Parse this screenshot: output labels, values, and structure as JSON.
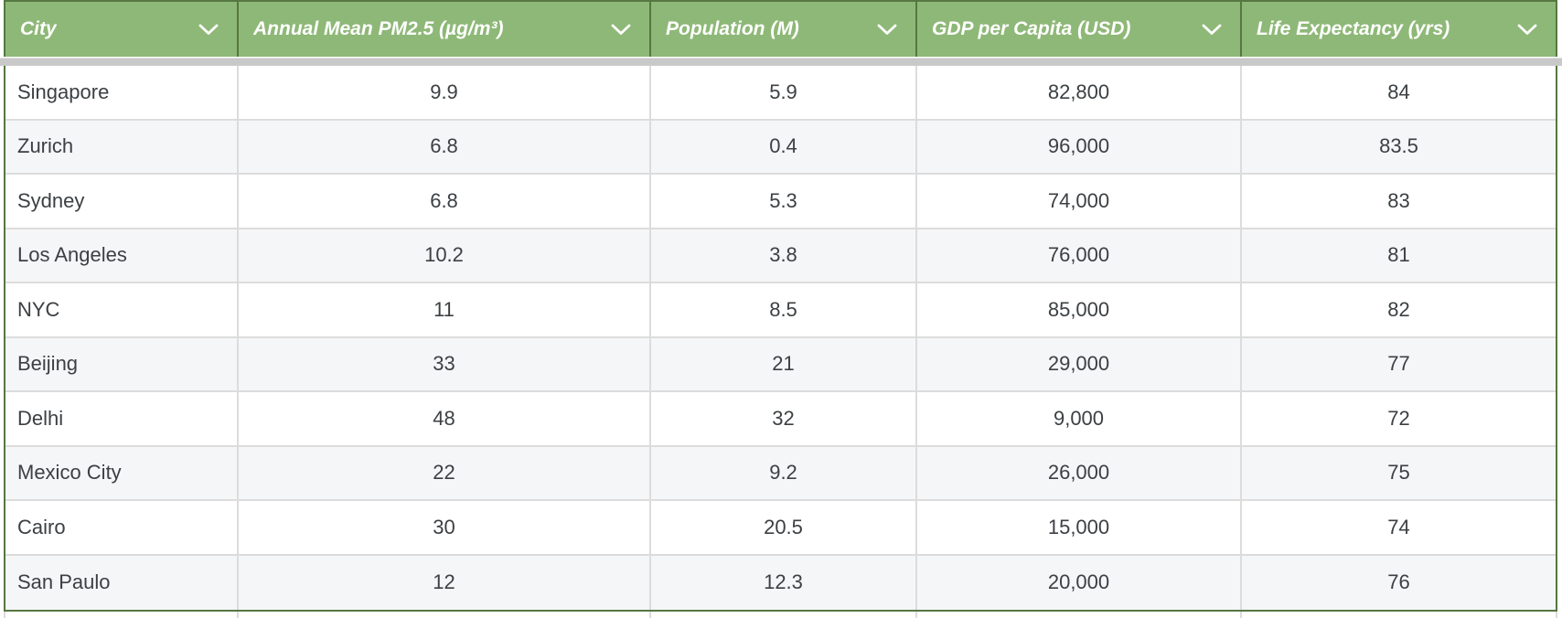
{
  "table": {
    "columns": [
      {
        "key": "city",
        "label": "City"
      },
      {
        "key": "pm25",
        "label": "Annual Mean PM2.5 (µg/m³)"
      },
      {
        "key": "population",
        "label": "Population (M)"
      },
      {
        "key": "gdp_per_capita",
        "label": "GDP per Capita (USD)"
      },
      {
        "key": "life_expectancy",
        "label": "Life Expectancy (yrs)"
      }
    ],
    "rows": [
      [
        "Singapore",
        "9.9",
        "5.9",
        "82,800",
        "84"
      ],
      [
        "Zurich",
        "6.8",
        "0.4",
        "96,000",
        "83.5"
      ],
      [
        "Sydney",
        "6.8",
        "5.3",
        "74,000",
        "83"
      ],
      [
        "Los Angeles",
        "10.2",
        "3.8",
        "76,000",
        "81"
      ],
      [
        "NYC",
        "11",
        "8.5",
        "85,000",
        "82"
      ],
      [
        "Beijing",
        "33",
        "21",
        "29,000",
        "77"
      ],
      [
        "Delhi",
        "48",
        "32",
        "9,000",
        "72"
      ],
      [
        "Mexico City",
        "22",
        "9.2",
        "26,000",
        "75"
      ],
      [
        "Cairo",
        "30",
        "20.5",
        "15,000",
        "74"
      ],
      [
        "San Paulo",
        "12",
        "12.3",
        "20,000",
        "76"
      ]
    ],
    "header_icon": "chevron-down-icon"
  },
  "colors": {
    "header_bg": "#8eb877",
    "border_green": "#567741",
    "header_text": "#ffffff",
    "divider": "#dcdcdc",
    "alt_row": "#f5f6f8",
    "shadow_band": "#c9c9c9",
    "text_dark": "#3c4043"
  },
  "chart_data": {
    "type": "table",
    "title": "",
    "columns": [
      "City",
      "Annual Mean PM2.5 (µg/m³)",
      "Population (M)",
      "GDP per Capita (USD)",
      "Life Expectancy (yrs)"
    ],
    "rows": [
      {
        "city": "Singapore",
        "pm25": 9.9,
        "population_m": 5.9,
        "gdp_per_capita_usd": 82800,
        "life_expectancy_yrs": 84
      },
      {
        "city": "Zurich",
        "pm25": 6.8,
        "population_m": 0.4,
        "gdp_per_capita_usd": 96000,
        "life_expectancy_yrs": 83.5
      },
      {
        "city": "Sydney",
        "pm25": 6.8,
        "population_m": 5.3,
        "gdp_per_capita_usd": 74000,
        "life_expectancy_yrs": 83
      },
      {
        "city": "Los Angeles",
        "pm25": 10.2,
        "population_m": 3.8,
        "gdp_per_capita_usd": 76000,
        "life_expectancy_yrs": 81
      },
      {
        "city": "NYC",
        "pm25": 11,
        "population_m": 8.5,
        "gdp_per_capita_usd": 85000,
        "life_expectancy_yrs": 82
      },
      {
        "city": "Beijing",
        "pm25": 33,
        "population_m": 21,
        "gdp_per_capita_usd": 29000,
        "life_expectancy_yrs": 77
      },
      {
        "city": "Delhi",
        "pm25": 48,
        "population_m": 32,
        "gdp_per_capita_usd": 9000,
        "life_expectancy_yrs": 72
      },
      {
        "city": "Mexico City",
        "pm25": 22,
        "population_m": 9.2,
        "gdp_per_capita_usd": 26000,
        "life_expectancy_yrs": 75
      },
      {
        "city": "Cairo",
        "pm25": 30,
        "population_m": 20.5,
        "gdp_per_capita_usd": 15000,
        "life_expectancy_yrs": 74
      },
      {
        "city": "San Paulo",
        "pm25": 12,
        "population_m": 12.3,
        "gdp_per_capita_usd": 20000,
        "life_expectancy_yrs": 76
      }
    ]
  }
}
